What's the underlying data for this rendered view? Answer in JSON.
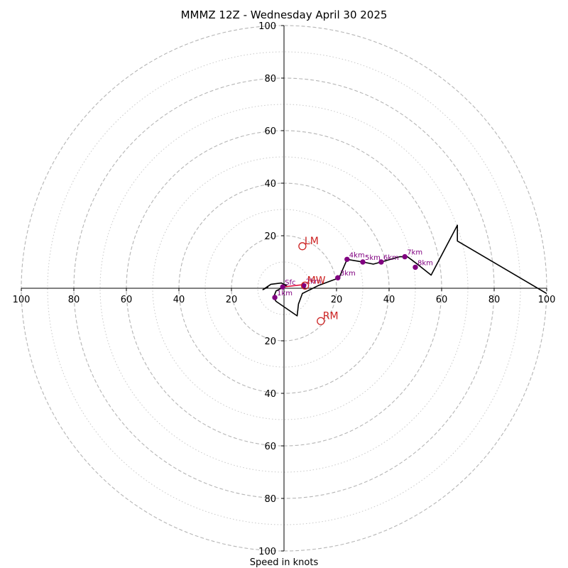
{
  "chart_data": {
    "type": "line",
    "title": "MMMZ 12Z - Wednesday April 30 2025",
    "xlabel": "Speed in knots",
    "ylabel": "",
    "xlim": [
      -100,
      100
    ],
    "ylim": [
      -100,
      100
    ],
    "grid": true,
    "rings_major": [
      20,
      40,
      60,
      80,
      100
    ],
    "rings_minor": [
      10,
      30,
      50,
      70,
      90
    ],
    "x_ticks": [
      "100",
      "80",
      "60",
      "40",
      "20",
      "",
      "20",
      "40",
      "60",
      "80",
      "100"
    ],
    "x_tick_values": [
      -100,
      -80,
      -60,
      -40,
      -20,
      0,
      20,
      40,
      60,
      80,
      100
    ],
    "y_ticks": [
      "100",
      "80",
      "60",
      "40",
      "20",
      "20",
      "40",
      "60",
      "80",
      "100"
    ],
    "y_tick_values": [
      100,
      80,
      60,
      40,
      20,
      -20,
      -40,
      -60,
      -80,
      -100
    ],
    "hodograph": {
      "color": "#000000",
      "points": [
        [
          -6,
          0.5
        ],
        [
          -8,
          -0.5
        ],
        [
          -5,
          1.5
        ],
        [
          -1,
          2
        ],
        [
          1,
          1
        ],
        [
          -3,
          -1
        ],
        [
          -4,
          -3.5
        ],
        [
          -3,
          -5
        ],
        [
          5,
          -10.5
        ],
        [
          5.5,
          -6
        ],
        [
          7,
          -2
        ],
        [
          9,
          -1
        ],
        [
          10,
          -0.5
        ],
        [
          13,
          1
        ],
        [
          21,
          4
        ],
        [
          24,
          11
        ],
        [
          30,
          10
        ],
        [
          34,
          9.2
        ],
        [
          37,
          10
        ],
        [
          44,
          12
        ],
        [
          47,
          12
        ],
        [
          51,
          9
        ],
        [
          56,
          5
        ],
        [
          66,
          24
        ],
        [
          66,
          18
        ],
        [
          100,
          -2
        ]
      ]
    },
    "height_markers": [
      {
        "label": "Sfc",
        "x": -0.5,
        "y": 0.5
      },
      {
        "label": "1km",
        "x": -3.5,
        "y": -3.5
      },
      {
        "label": "2km",
        "x": 7.5,
        "y": 1
      },
      {
        "label": "3km",
        "x": 20.5,
        "y": 4
      },
      {
        "label": "4km",
        "x": 24,
        "y": 11
      },
      {
        "label": "5km",
        "x": 30,
        "y": 10
      },
      {
        "label": "6km",
        "x": 37,
        "y": 10
      },
      {
        "label": "7km",
        "x": 46,
        "y": 12
      },
      {
        "label": "8km",
        "x": 50,
        "y": 8
      }
    ],
    "marker_color": "#800080",
    "mean_wind_vector": {
      "from": [
        -0.5,
        0.5
      ],
      "to": [
        8.5,
        1.5
      ],
      "color": "#e0103f"
    },
    "storm_motions": [
      {
        "label": "LM",
        "x": 7,
        "y": 16
      },
      {
        "label": "MW",
        "x": 8,
        "y": 1
      },
      {
        "label": "RM",
        "x": 14,
        "y": -12.5
      }
    ],
    "storm_motion_color": "#cc2222"
  }
}
